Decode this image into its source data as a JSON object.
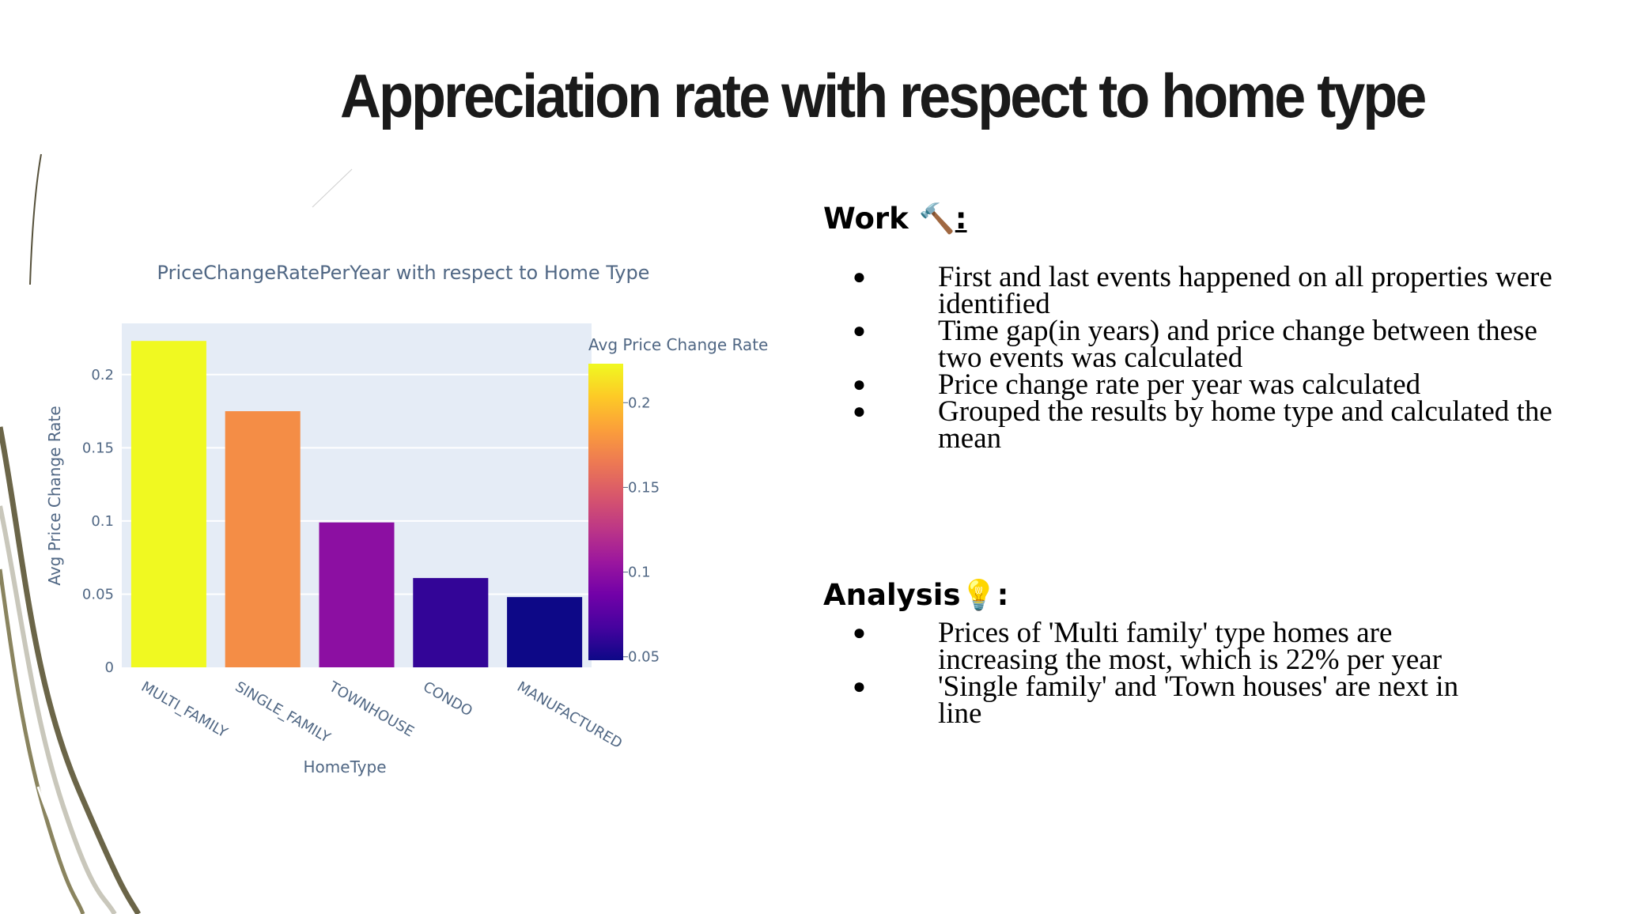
{
  "slide": {
    "title": "Appreciation rate with respect to home type"
  },
  "work": {
    "heading": "Work",
    "heading_icon": "🔨",
    "suffix": ":",
    "bullets": [
      "First and last events happened on all properties were identified",
      "Time gap(in years) and price change between these two events was calculated",
      "Price change rate per year was calculated",
      "Grouped the results by home type and calculated the mean"
    ]
  },
  "analysis": {
    "heading": "Analysis",
    "heading_icon": "💡",
    "suffix": ":",
    "bullets": [
      "Prices of 'Multi family' type homes are increasing the most, which is 22% per year",
      "'Single family' and 'Town houses' are next in line"
    ]
  },
  "chart_data": {
    "type": "bar",
    "title": "PriceChangeRatePerYear with respect to Home Type",
    "xlabel": "HomeType",
    "ylabel": "Avg Price Change Rate",
    "categories": [
      "MULTI_FAMILY",
      "SINGLE_FAMILY",
      "TOWNHOUSE",
      "CONDO",
      "MANUFACTURED"
    ],
    "values": [
      0.223,
      0.175,
      0.099,
      0.061,
      0.048
    ],
    "ylim": [
      0,
      0.235
    ],
    "yticks": [
      0,
      0.05,
      0.1,
      0.15,
      0.2
    ],
    "ytick_labels": [
      "0",
      "0.05",
      "0.1",
      "0.15",
      "0.2"
    ],
    "grid": true,
    "colorbar": {
      "title": "Avg Price Change Rate",
      "range": [
        0.048,
        0.223
      ],
      "ticks": [
        0.05,
        0.1,
        0.15,
        0.2
      ],
      "tick_labels": [
        "0.05",
        "0.1",
        "0.15",
        "0.2"
      ],
      "colorscale": [
        "#0d0887",
        "#46039f",
        "#7201a8",
        "#9c179e",
        "#bd3786",
        "#d8576b",
        "#ed7953",
        "#fb9f3a",
        "#fdca26",
        "#f0f921"
      ]
    },
    "plot_bg": "#e5ecf6"
  }
}
